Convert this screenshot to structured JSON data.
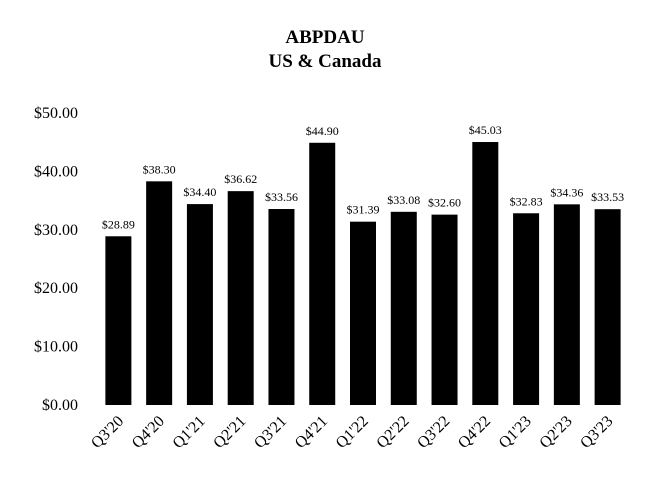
{
  "chart_data": {
    "type": "bar",
    "title": "ABPDAU",
    "subtitle": "US & Canada",
    "xlabel": "",
    "ylabel": "",
    "categories": [
      "Q3'20",
      "Q4'20",
      "Q1'21",
      "Q2'21",
      "Q3'21",
      "Q4'21",
      "Q1'22",
      "Q2'22",
      "Q3'22",
      "Q4'22",
      "Q1'23",
      "Q2'23",
      "Q3'23"
    ],
    "values": [
      28.89,
      38.3,
      34.4,
      36.62,
      33.56,
      44.9,
      31.39,
      33.08,
      32.6,
      45.03,
      32.83,
      34.36,
      33.53
    ],
    "data_labels": [
      "$28.89",
      "$38.30",
      "$34.40",
      "$36.62",
      "$33.56",
      "$44.90",
      "$31.39",
      "$33.08",
      "$32.60",
      "$45.03",
      "$32.83",
      "$34.36",
      "$33.53"
    ],
    "ylim": [
      0,
      50
    ],
    "yticks": [
      0,
      10,
      20,
      30,
      40,
      50
    ],
    "ytick_labels": [
      "$0.00",
      "$10.00",
      "$20.00",
      "$30.00",
      "$40.00",
      "$50.00"
    ],
    "grid": false,
    "legend": "none",
    "bar_color": "#000000"
  }
}
